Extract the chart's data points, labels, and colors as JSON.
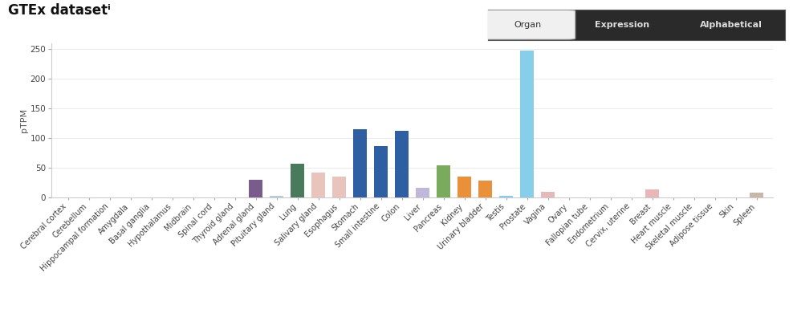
{
  "title": "GTEx datasetⁱ",
  "ylabel": "pTPM",
  "categories": [
    "Cerebral cortex",
    "Cerebellum",
    "Hippocampal formation",
    "Amygdala",
    "Basal ganglia",
    "Hypothalamus",
    "Midbrain",
    "Spinal cord",
    "Thyroid gland",
    "Adrenal gland",
    "Pituitary gland",
    "Lung",
    "Salivary gland",
    "Esophagus",
    "Stomach",
    "Small intestine",
    "Colon",
    "Liver",
    "Pancreas",
    "Kidney",
    "Urinary bladder",
    "Testis",
    "Prostate",
    "Vagina",
    "Ovary",
    "Fallopian tube",
    "Endometrium",
    "Cervix, uterine",
    "Breast",
    "Heart muscle",
    "Skeletal muscle",
    "Adipose tissue",
    "Skin",
    "Spleen"
  ],
  "values": [
    0,
    0,
    0,
    0,
    0,
    0,
    0,
    0,
    0,
    30,
    3,
    57,
    43,
    36,
    115,
    87,
    112,
    17,
    54,
    35,
    29,
    3,
    248,
    10,
    1,
    1,
    1,
    1,
    14,
    0,
    0,
    0,
    0,
    9
  ],
  "colors": [
    "#b8ccd8",
    "#b8ccd8",
    "#b8ccd8",
    "#b8ccd8",
    "#b8ccd8",
    "#b8ccd8",
    "#b8ccd8",
    "#b8ccd8",
    "#b8ccd8",
    "#7a5c8c",
    "#b8ccd8",
    "#4a7a5c",
    "#e8c4bc",
    "#e8c4bc",
    "#2e5fa3",
    "#2e5fa3",
    "#2e5fa3",
    "#c0b8d8",
    "#7aaa5c",
    "#e8903a",
    "#e8903a",
    "#87ceeb",
    "#87ceeb",
    "#e8b8b8",
    "#e8b8b8",
    "#e8b8b8",
    "#e8b8b8",
    "#e8b8b8",
    "#e8b8b8",
    "#b8c0d8",
    "#b8c0d8",
    "#b8c0d8",
    "#b8c0d8",
    "#c8b8a8"
  ],
  "ylim": [
    0,
    260
  ],
  "yticks": [
    0,
    50,
    100,
    150,
    200,
    250
  ],
  "bg_color": "#ffffff",
  "bar_width": 0.65,
  "title_fontsize": 12,
  "label_fontsize": 7,
  "ylabel_fontsize": 8,
  "btn_labels": [
    "Organ",
    "Expression",
    "Alphabetical"
  ],
  "btn_colors": [
    "#f0f0f0",
    "#2a2a2a",
    "#2a2a2a"
  ],
  "btn_text_colors": [
    "#333333",
    "#dddddd",
    "#dddddd"
  ]
}
